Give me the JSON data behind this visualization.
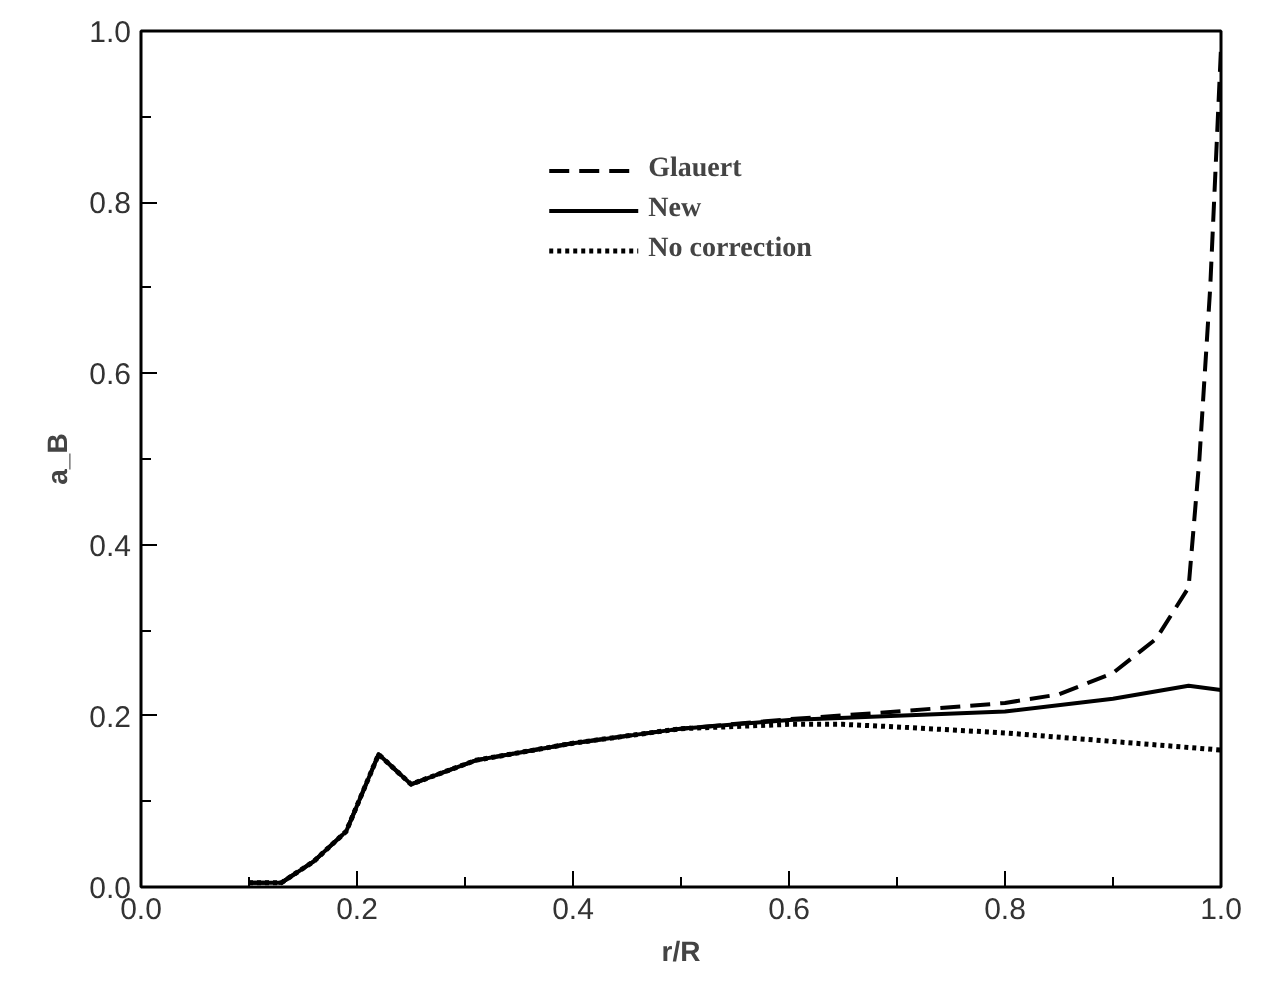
{
  "chart_data": {
    "type": "line",
    "xlabel": "r/R",
    "ylabel": "a_B",
    "xlim": [
      0,
      1
    ],
    "ylim": [
      0,
      1
    ],
    "xticks": [
      {
        "value": 0,
        "label": "0.0"
      },
      {
        "value": 0.2,
        "label": "0.2"
      },
      {
        "value": 0.4,
        "label": "0.4"
      },
      {
        "value": 0.6,
        "label": "0.6"
      },
      {
        "value": 0.8,
        "label": "0.8"
      },
      {
        "value": 1,
        "label": "1.0"
      }
    ],
    "yticks": [
      {
        "value": 0,
        "label": "0.0"
      },
      {
        "value": 0.2,
        "label": "0.2"
      },
      {
        "value": 0.4,
        "label": "0.4"
      },
      {
        "value": 0.6,
        "label": "0.6"
      },
      {
        "value": 0.8,
        "label": "0.8"
      },
      {
        "value": 1,
        "label": "1.0"
      }
    ],
    "grid": false,
    "legend": "top",
    "marker": "none",
    "series": [
      {
        "name": "Glauert",
        "color": "#000000",
        "line_style": "dashed",
        "x": [
          0.1,
          0.13,
          0.16,
          0.19,
          0.22,
          0.25,
          0.31,
          0.4,
          0.5,
          0.6,
          0.7,
          0.8,
          0.85,
          0.9,
          0.94,
          0.97,
          0.98,
          0.99,
          1.0
        ],
        "values": [
          0.005,
          0.005,
          0.03,
          0.065,
          0.155,
          0.12,
          0.148,
          0.168,
          0.185,
          0.196,
          0.205,
          0.215,
          0.225,
          0.25,
          0.29,
          0.35,
          0.5,
          0.7,
          0.98
        ]
      },
      {
        "name": "New",
        "color": "#000000",
        "line_style": "solid",
        "x": [
          0.1,
          0.13,
          0.16,
          0.19,
          0.22,
          0.25,
          0.31,
          0.4,
          0.5,
          0.6,
          0.7,
          0.8,
          0.9,
          0.97,
          1.0
        ],
        "values": [
          0.005,
          0.005,
          0.03,
          0.065,
          0.155,
          0.12,
          0.148,
          0.168,
          0.185,
          0.195,
          0.2,
          0.205,
          0.22,
          0.235,
          0.23
        ]
      },
      {
        "name": "No correction",
        "color": "#000000",
        "line_style": "dotted",
        "x": [
          0.1,
          0.13,
          0.16,
          0.19,
          0.22,
          0.25,
          0.31,
          0.4,
          0.5,
          0.6,
          0.65,
          0.7,
          0.8,
          0.9,
          1.0
        ],
        "values": [
          0.005,
          0.005,
          0.03,
          0.065,
          0.155,
          0.12,
          0.148,
          0.168,
          0.185,
          0.19,
          0.19,
          0.187,
          0.18,
          0.17,
          0.16
        ]
      }
    ]
  }
}
